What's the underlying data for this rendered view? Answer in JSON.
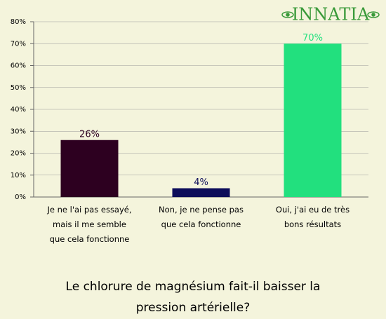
{
  "chart_data": {
    "type": "bar",
    "title": "Le chlorure de magnésium fait-il baisser la pression artérielle?",
    "logo": "INNATIA",
    "categories": [
      "Je ne l'ai pas essayé, mais il me semble que cela fonctionne",
      "Non, je ne pense pas que cela fonctionne",
      "Oui, j'ai eu de très bons résultats"
    ],
    "values": [
      26,
      4,
      70
    ],
    "value_labels": [
      "26%",
      "4%",
      "70%"
    ],
    "colors": [
      "#2d0020",
      "#0d0d5a",
      "#22e07e"
    ],
    "ylim": [
      0,
      80
    ],
    "yticks": [
      {
        "value": 0,
        "label": "0%"
      },
      {
        "value": 10,
        "label": "10%"
      },
      {
        "value": 20,
        "label": "20%"
      },
      {
        "value": 30,
        "label": "30%"
      },
      {
        "value": 40,
        "label": "40%"
      },
      {
        "value": 50,
        "label": "50%"
      },
      {
        "value": 60,
        "label": "60%"
      },
      {
        "value": 70,
        "label": "70%"
      },
      {
        "value": 80,
        "label": "80%"
      }
    ],
    "grid": true
  }
}
